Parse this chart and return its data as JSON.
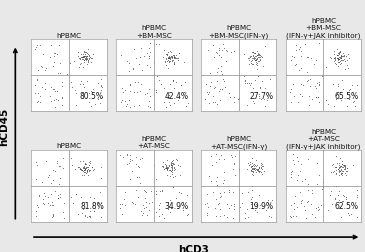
{
  "top_labels": [
    [
      "hPBMC"
    ],
    [
      "hPBMC",
      "+BM-MSC"
    ],
    [
      "hPBMC",
      "+BM-MSC(IFN-γ)"
    ],
    [
      "hPBMC",
      "+BM-MSC",
      "(IFN-γ+JAK inhibitor)"
    ]
  ],
  "bottom_labels": [
    [
      "hPBMC"
    ],
    [
      "hPBMC",
      "+AT-MSC"
    ],
    [
      "hPBMC",
      "+AT-MSC(IFN-γ)"
    ],
    [
      "hPBMC",
      "+AT-MSC",
      "(IFN-γ+JAK inhibitor)"
    ]
  ],
  "top_percentages": [
    "80.5%",
    "42.4%",
    "27.7%",
    "65.5%"
  ],
  "bottom_percentages": [
    "81.8%",
    "34.9%",
    "19.9%",
    "62.5%"
  ],
  "bg_color": "#e8e8e8",
  "plot_bg": "#ffffff",
  "grid_color": "#888888",
  "text_color": "#111111",
  "xlabel": "hCD3",
  "ylabel": "hCD45",
  "pct_fontsize": 5.5,
  "title_fontsize": 5.2
}
